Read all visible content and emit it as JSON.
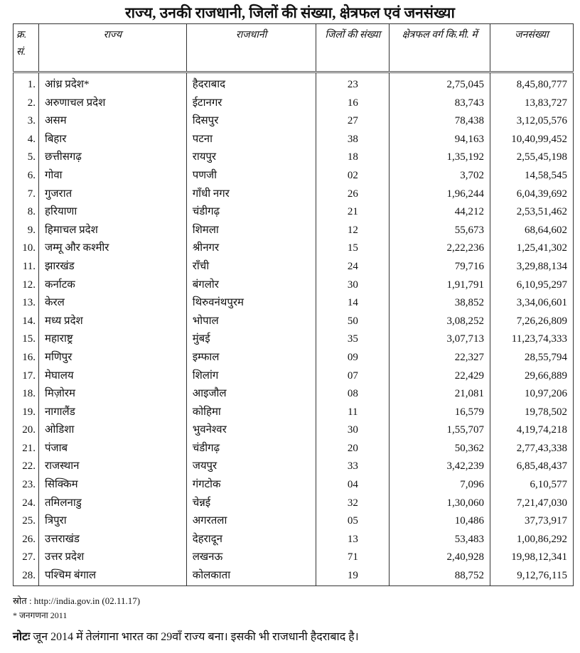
{
  "title": "राज्य, उनकी राजधानी, जिलों की संख्या, क्षेत्रफल एवं जनसंख्या",
  "headers": [
    "क्र. सं.",
    "राज्य",
    "राजधानी",
    "जिलों की संख्या",
    "क्षेत्रफल वर्ग कि.मी. में",
    "जनसंख्या"
  ],
  "rows": [
    [
      "1.",
      "आंध्र प्रदेश*",
      "हैदराबाद",
      "23",
      "2,75,045",
      "8,45,80,777"
    ],
    [
      "2.",
      "अरुणाचल प्रदेश",
      "ईटानगर",
      "16",
      "83,743",
      "13,83,727"
    ],
    [
      "3.",
      "असम",
      "दिसपुर",
      "27",
      "78,438",
      "3,12,05,576"
    ],
    [
      "4.",
      "बिहार",
      "पटना",
      "38",
      "94,163",
      "10,40,99,452"
    ],
    [
      "5.",
      "छत्तीसगढ़",
      "रायपुर",
      "18",
      "1,35,192",
      "2,55,45,198"
    ],
    [
      "6.",
      "गोवा",
      "पणजी",
      "02",
      "3,702",
      "14,58,545"
    ],
    [
      "7.",
      "गुजरात",
      "गाँधी नगर",
      "26",
      "1,96,244",
      "6,04,39,692"
    ],
    [
      "8.",
      "हरियाणा",
      "चंडीगढ़",
      "21",
      "44,212",
      "2,53,51,462"
    ],
    [
      "9.",
      "हिमाचल प्रदेश",
      "शिमला",
      "12",
      "55,673",
      "68,64,602"
    ],
    [
      "10.",
      "जम्मू और कश्मीर",
      "श्रीनगर",
      "15",
      "2,22,236",
      "1,25,41,302"
    ],
    [
      "11.",
      "झारखंड",
      "राँची",
      "24",
      "79,716",
      "3,29,88,134"
    ],
    [
      "12.",
      "कर्नाटक",
      "बंगलोर",
      "30",
      "1,91,791",
      "6,10,95,297"
    ],
    [
      "13.",
      "केरल",
      "थिरुवनंथपुरम",
      "14",
      "38,852",
      "3,34,06,601"
    ],
    [
      "14.",
      "मध्य प्रदेश",
      "भोपाल",
      "50",
      "3,08,252",
      "7,26,26,809"
    ],
    [
      "15.",
      "महाराष्ट्र",
      "मुंबई",
      "35",
      "3,07,713",
      "11,23,74,333"
    ],
    [
      "16.",
      "मणिपुर",
      "इम्फाल",
      "09",
      "22,327",
      "28,55,794"
    ],
    [
      "17.",
      "मेघालय",
      "शिलांग",
      "07",
      "22,429",
      "29,66,889"
    ],
    [
      "18.",
      "मिज़ोरम",
      "आइजौल",
      "08",
      "21,081",
      "10,97,206"
    ],
    [
      "19.",
      "नागालैंड",
      "कोहिमा",
      "11",
      "16,579",
      "19,78,502"
    ],
    [
      "20.",
      "ओडिशा",
      "भुवनेश्वर",
      "30",
      "1,55,707",
      "4,19,74,218"
    ],
    [
      "21.",
      "पंजाब",
      "चंडीगढ़",
      "20",
      "50,362",
      "2,77,43,338"
    ],
    [
      "22.",
      "राजस्थान",
      "जयपुर",
      "33",
      "3,42,239",
      "6,85,48,437"
    ],
    [
      "23.",
      "सिक्किम",
      "गंगटोक",
      "04",
      "7,096",
      "6,10,577"
    ],
    [
      "24.",
      "तमिलनाडु",
      "चेन्नई",
      "32",
      "1,30,060",
      "7,21,47,030"
    ],
    [
      "25.",
      "त्रिपुरा",
      "अगरतला",
      "05",
      "10,486",
      "37,73,917"
    ],
    [
      "26.",
      "उत्तराखंड",
      "देहरादून",
      "13",
      "53,483",
      "1,00,86,292"
    ],
    [
      "27.",
      "उत्तर प्रदेश",
      "लखनऊ",
      "71",
      "2,40,928",
      "19,98,12,341"
    ],
    [
      "28.",
      "पश्चिम बंगाल",
      "कोलकाता",
      "19",
      "88,752",
      "9,12,76,115"
    ]
  ],
  "footer": {
    "source": "स्रोत  :  http://india.gov.in (02.11.17)",
    "census": "* जनगणना 2011",
    "note_label": "नोटः",
    "note_text": " जून 2014 में तेलंगाना भारत का 29वाँ राज्य बना। इसकी भी राजधानी हैदराबाद है।"
  }
}
